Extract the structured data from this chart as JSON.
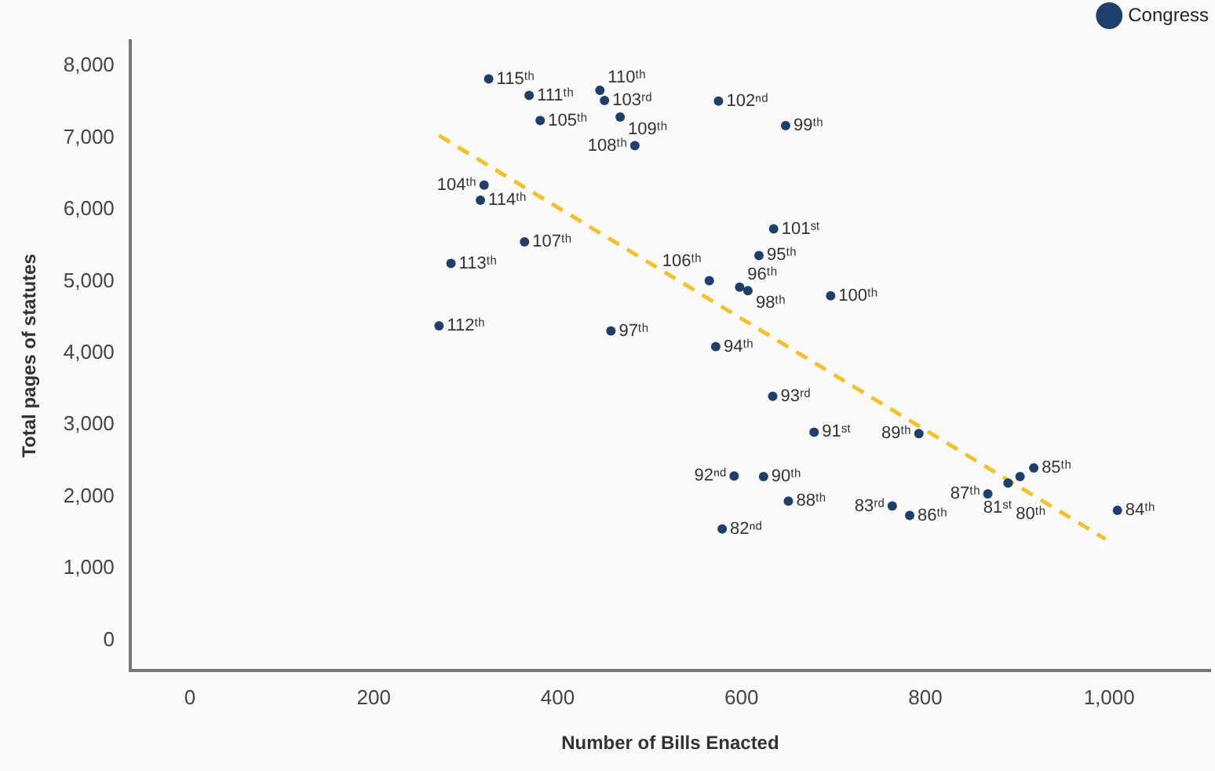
{
  "chart_data": {
    "type": "scatter",
    "xlabel": "Number of Bills Enacted",
    "ylabel": "Total pages of statutes",
    "xlim": [
      -65,
      1110
    ],
    "ylim": [
      -420,
      8350
    ],
    "xticks": [
      {
        "value": 0,
        "label": "0"
      },
      {
        "value": 200,
        "label": "200"
      },
      {
        "value": 400,
        "label": "400"
      },
      {
        "value": 600,
        "label": "600"
      },
      {
        "value": 800,
        "label": "800"
      },
      {
        "value": 1000,
        "label": "1,000"
      }
    ],
    "yticks": [
      {
        "value": 0,
        "label": "0"
      },
      {
        "value": 1000,
        "label": "1,000"
      },
      {
        "value": 2000,
        "label": "2,000"
      },
      {
        "value": 3000,
        "label": "3,000"
      },
      {
        "value": 4000,
        "label": "4,000"
      },
      {
        "value": 5000,
        "label": "5,000"
      },
      {
        "value": 6000,
        "label": "6,000"
      },
      {
        "value": 7000,
        "label": "7,000"
      },
      {
        "value": 8000,
        "label": "8,000"
      }
    ],
    "grid": false,
    "legend": "top right",
    "marker": "circle",
    "series": [
      {
        "name": "Congress",
        "color": "#1f3f6b",
        "x": [
          325,
          369,
          381,
          446,
          451,
          468,
          484,
          575,
          648,
          320,
          316,
          364,
          284,
          635,
          619,
          565,
          598,
          607,
          697,
          271,
          458,
          572,
          634,
          679,
          793,
          592,
          624,
          651,
          579,
          764,
          783,
          868,
          918,
          890,
          903,
          1009
        ],
        "values": [
          7820,
          7590,
          7240,
          7660,
          7520,
          7290,
          6890,
          7510,
          7170,
          6340,
          6130,
          5550,
          5250,
          5730,
          5360,
          5010,
          4920,
          4870,
          4800,
          4380,
          4310,
          4090,
          3400,
          2900,
          2880,
          2290,
          2280,
          1940,
          1550,
          1870,
          1740,
          2040,
          2400,
          2190,
          2280,
          1810
        ]
      },
      {
        "type": "line",
        "color": "#f2c12e",
        "line_style": "dashed",
        "marker": "none",
        "x": [
          271,
          996
        ],
        "values": [
          7030,
          1410
        ]
      }
    ],
    "annotations": [
      {
        "text": "115ᵗʰ",
        "x": 325,
        "y": 7820
      },
      {
        "text": "111ᵗʰ",
        "x": 369,
        "y": 7590
      },
      {
        "text": "105ᵗʰ",
        "x": 381,
        "y": 7240
      },
      {
        "text": "110ᵗʰ",
        "x": 446,
        "y": 7660
      },
      {
        "text": "103ʳᵈ",
        "x": 451,
        "y": 7520
      },
      {
        "text": "109ᵗʰ",
        "x": 468,
        "y": 7290
      },
      {
        "text": "108ᵗʰ",
        "x": 484,
        "y": 6890
      },
      {
        "text": "102ⁿᵈ",
        "x": 575,
        "y": 7510
      },
      {
        "text": "99ᵗʰ",
        "x": 648,
        "y": 7170
      },
      {
        "text": "104ᵗʰ",
        "x": 320,
        "y": 6340
      },
      {
        "text": "114ᵗʰ",
        "x": 316,
        "y": 6130
      },
      {
        "text": "107ᵗʰ",
        "x": 364,
        "y": 5550
      },
      {
        "text": "113ᵗʰ",
        "x": 284,
        "y": 5250
      },
      {
        "text": "101ˢᵗ",
        "x": 635,
        "y": 5730
      },
      {
        "text": "95ᵗʰ",
        "x": 619,
        "y": 5360
      },
      {
        "text": "106ᵗʰ",
        "x": 565,
        "y": 5010
      },
      {
        "text": "96ᵗʰ",
        "x": 598,
        "y": 4920
      },
      {
        "text": "98ᵗʰ",
        "x": 607,
        "y": 4870
      },
      {
        "text": "100ᵗʰ",
        "x": 697,
        "y": 4800
      },
      {
        "text": "112ᵗʰ",
        "x": 271,
        "y": 4380
      },
      {
        "text": "97ᵗʰ",
        "x": 458,
        "y": 4310
      },
      {
        "text": "94ᵗʰ",
        "x": 572,
        "y": 4090
      },
      {
        "text": "93ʳᵈ",
        "x": 634,
        "y": 3400
      },
      {
        "text": "91ˢᵗ",
        "x": 679,
        "y": 2900
      },
      {
        "text": "89ᵗʰ",
        "x": 793,
        "y": 2880
      },
      {
        "text": "92ⁿᵈ",
        "x": 592,
        "y": 2290
      },
      {
        "text": "90ᵗʰ",
        "x": 624,
        "y": 2280
      },
      {
        "text": "88ᵗʰ",
        "x": 651,
        "y": 1940
      },
      {
        "text": "82ⁿᵈ",
        "x": 579,
        "y": 1550
      },
      {
        "text": "83ʳᵈ",
        "x": 764,
        "y": 1870
      },
      {
        "text": "86ᵗʰ",
        "x": 783,
        "y": 1740
      },
      {
        "text": "87ᵗʰ",
        "x": 868,
        "y": 2040
      },
      {
        "text": "85ᵗʰ",
        "x": 918,
        "y": 2400
      },
      {
        "text": "80ᵗʰ",
        "x": 890,
        "y": 2190
      },
      {
        "text": "81ˢᵗ",
        "x": 903,
        "y": 2280
      },
      {
        "text": "84ᵗʰ",
        "x": 1009,
        "y": 1810
      }
    ]
  }
}
